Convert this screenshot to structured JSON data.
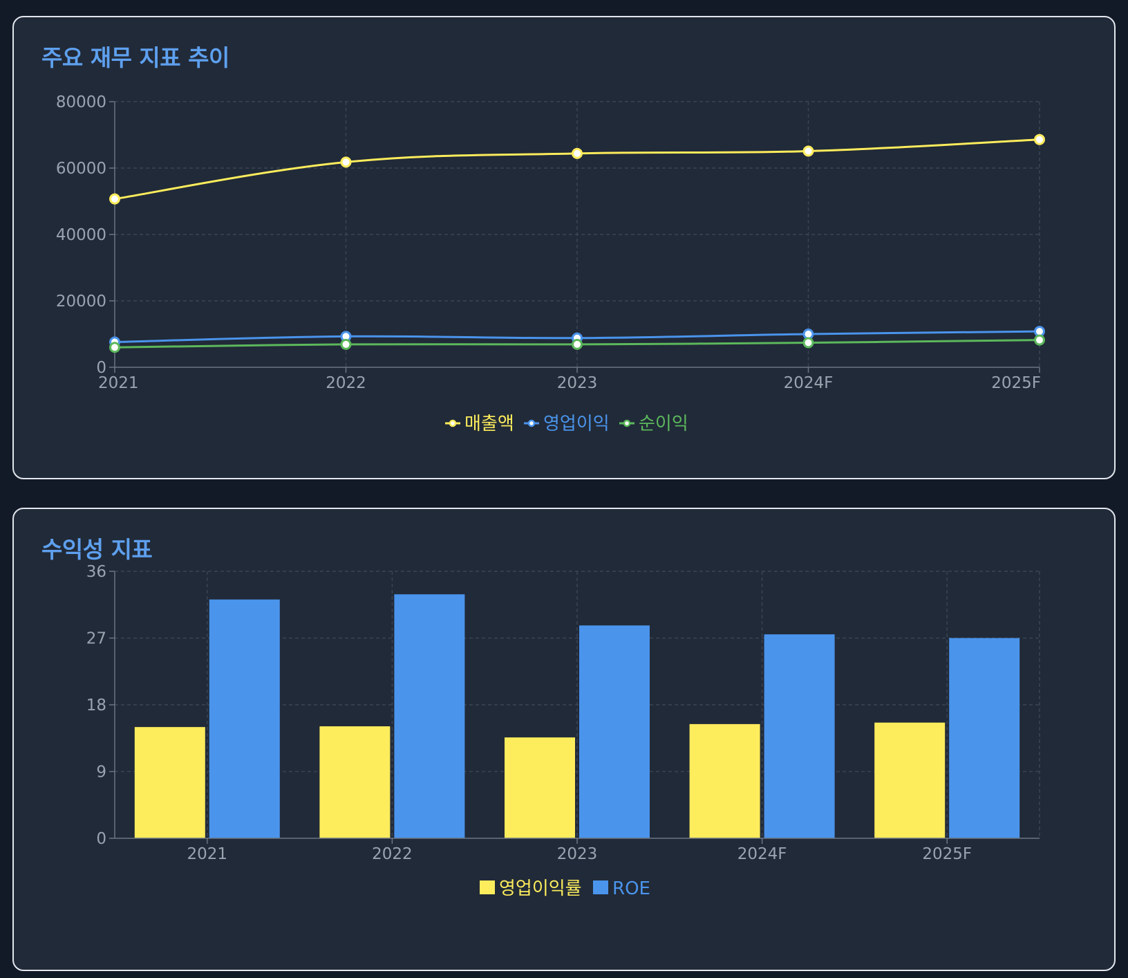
{
  "chart_data": [
    {
      "type": "line",
      "title": "주요 재무 지표 추이",
      "categories": [
        "2021",
        "2022",
        "2023",
        "2024F",
        "2025F"
      ],
      "ylim": [
        0,
        80000
      ],
      "yticks": [
        "0",
        "20000",
        "40000",
        "60000",
        "80000"
      ],
      "grid": true,
      "legend_position": "bottom-center",
      "series": [
        {
          "name": "매출액",
          "color": "#fdec5c",
          "values": [
            50700,
            61800,
            64400,
            65100,
            68600
          ]
        },
        {
          "name": "영업이익",
          "color": "#4a94ec",
          "values": [
            7600,
            9300,
            8800,
            10000,
            10800
          ]
        },
        {
          "name": "순이익",
          "color": "#5cb85c",
          "values": [
            6000,
            6900,
            6900,
            7400,
            8200
          ]
        }
      ]
    },
    {
      "type": "bar",
      "title": "수익성 지표",
      "categories": [
        "2021",
        "2022",
        "2023",
        "2024F",
        "2025F"
      ],
      "ylim": [
        0,
        36
      ],
      "yticks": [
        "0",
        "9",
        "18",
        "27",
        "36"
      ],
      "grid": true,
      "legend_position": "bottom-center",
      "series": [
        {
          "name": "영업이익률",
          "color": "#fdec5c",
          "values": [
            15.0,
            15.1,
            13.6,
            15.4,
            15.6
          ]
        },
        {
          "name": "ROE",
          "color": "#4a94ec",
          "values": [
            32.2,
            32.9,
            28.7,
            27.5,
            27.0
          ]
        }
      ]
    }
  ]
}
